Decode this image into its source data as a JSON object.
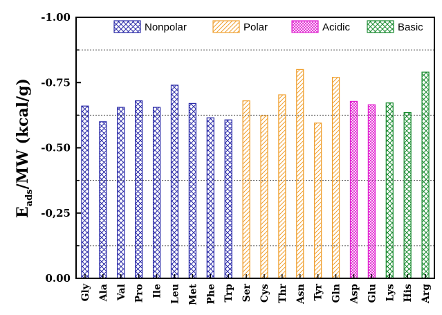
{
  "chart_data": {
    "type": "bar",
    "title": "",
    "xlabel": "",
    "ylabel": "E_ads/MW (kcal/g)",
    "ylabel_main": "E",
    "ylabel_sub": "ads",
    "ylabel_rest": "/MW (kcal/g)",
    "ylim": [
      0.0,
      -1.0
    ],
    "yticks": [
      0.0,
      -0.25,
      -0.5,
      -0.75,
      -1.0
    ],
    "ytick_labels": [
      "0.00",
      "-0,25",
      "-0.50",
      "-0.75",
      "-1.00"
    ],
    "gridlines": [
      -0.125,
      -0.375,
      -0.625,
      -0.875
    ],
    "legend_position": "top-right",
    "categories": [
      "Gly",
      "Ala",
      "Val",
      "Pro",
      "Ile",
      "Leu",
      "Met",
      "Phe",
      "Trp",
      "Ser",
      "Cys",
      "Thr",
      "Asn",
      "Tyr",
      "Gln",
      "Asp",
      "Glu",
      "Lys",
      "His",
      "Arg"
    ],
    "values": [
      -0.66,
      -0.6,
      -0.655,
      -0.68,
      -0.655,
      -0.74,
      -0.67,
      -0.615,
      -0.607,
      -0.68,
      -0.623,
      -0.703,
      -0.8,
      -0.595,
      -0.77,
      -0.678,
      -0.665,
      -0.672,
      -0.635,
      -0.79
    ],
    "groups": [
      "Nonpolar",
      "Nonpolar",
      "Nonpolar",
      "Nonpolar",
      "Nonpolar",
      "Nonpolar",
      "Nonpolar",
      "Nonpolar",
      "Nonpolar",
      "Polar",
      "Polar",
      "Polar",
      "Polar",
      "Polar",
      "Polar",
      "Acidic",
      "Acidic",
      "Basic",
      "Basic",
      "Basic"
    ],
    "series": [
      {
        "name": "Nonpolar",
        "color": "#2b2ba8",
        "pattern": "crosshatch"
      },
      {
        "name": "Polar",
        "color": "#f0a030",
        "pattern": "diagonal"
      },
      {
        "name": "Acidic",
        "color": "#e020d0",
        "pattern": "crosshatch-fine"
      },
      {
        "name": "Basic",
        "color": "#178a2e",
        "pattern": "crosshatch"
      }
    ]
  }
}
